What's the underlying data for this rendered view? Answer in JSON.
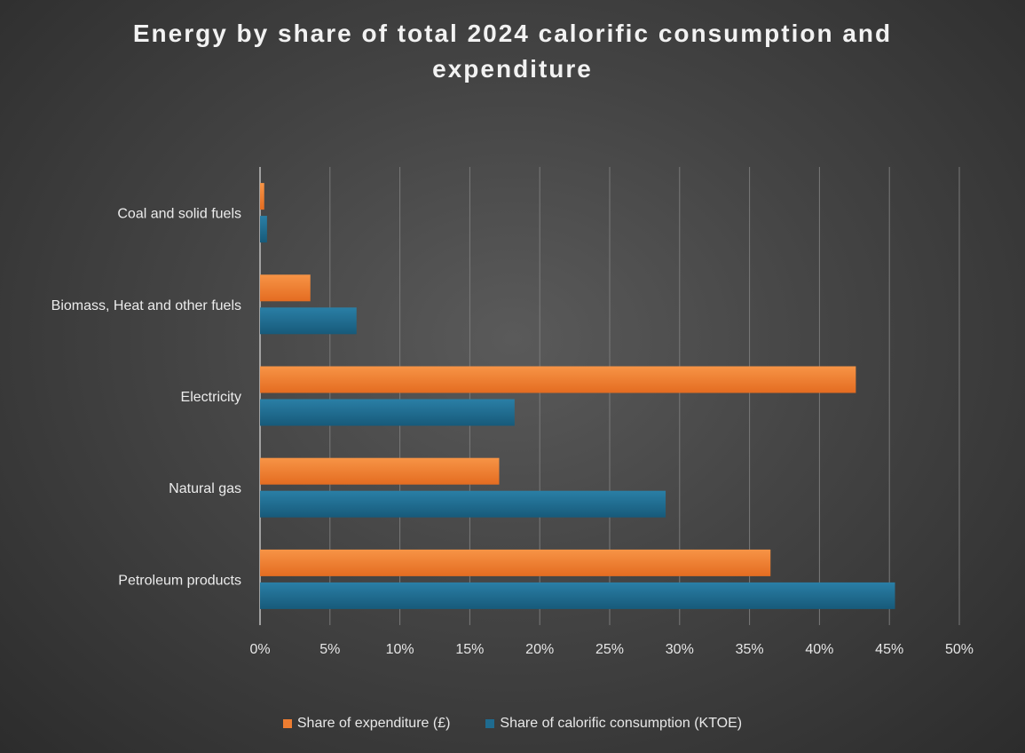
{
  "chart_data": {
    "type": "bar",
    "orientation": "horizontal",
    "title": "Energy by share of  total 2024 calorific consumption and expenditure",
    "title_lines": [
      "Energy by share of  total 2024 calorific consumption and",
      "expenditure"
    ],
    "categories": [
      "Coal and solid fuels",
      "Biomass, Heat and other fuels",
      "Electricity",
      "Natural gas",
      "Petroleum products"
    ],
    "series": [
      {
        "name": "Share of expenditure (£)",
        "color": "#ED7D31",
        "values": [
          0.3,
          3.6,
          42.6,
          17.1,
          36.5
        ]
      },
      {
        "name": "Share of calorific consumption (KTOE)",
        "color": "#1F6B8F",
        "values": [
          0.5,
          6.9,
          18.2,
          29.0,
          45.4
        ]
      }
    ],
    "xlim": [
      0,
      50
    ],
    "ticks": [
      "0%",
      "5%",
      "10%",
      "15%",
      "20%",
      "25%",
      "30%",
      "35%",
      "40%",
      "45%",
      "50%"
    ],
    "xlabel": "",
    "ylabel": "",
    "grid": true,
    "legend_position": "bottom"
  }
}
